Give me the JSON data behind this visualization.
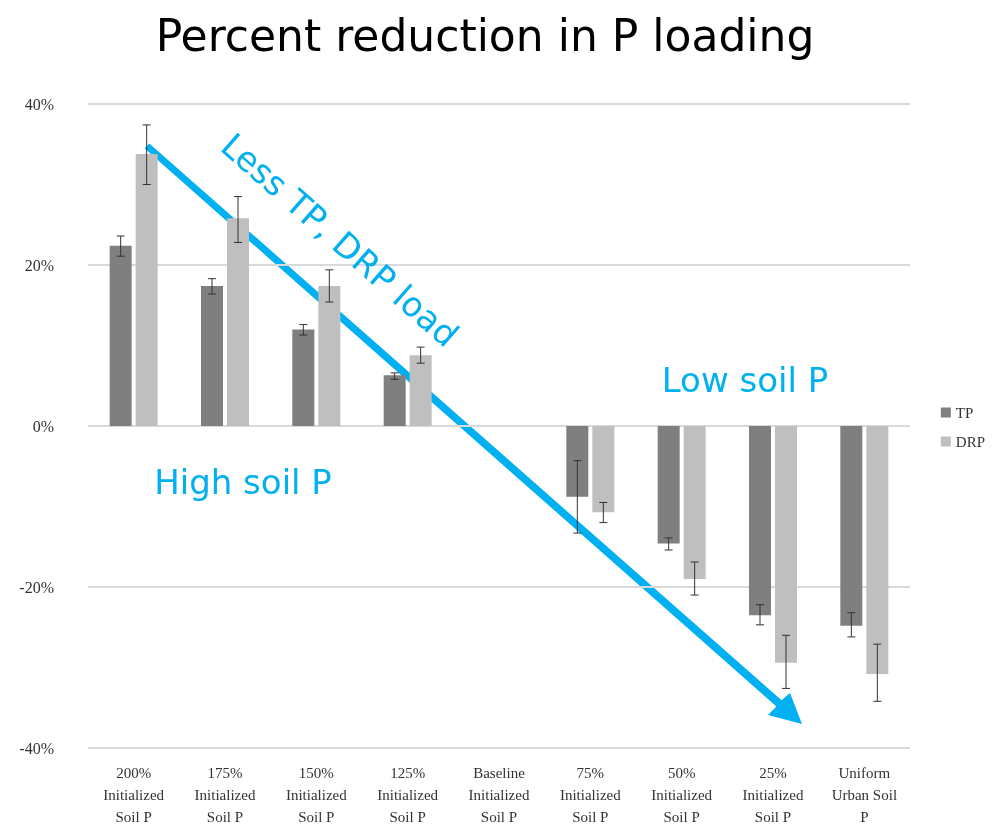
{
  "chart_data": {
    "type": "bar",
    "title": "Percent reduction in P loading",
    "categories": [
      "200% Initialized Soil P",
      "175% Initialized Soil P",
      "150% Initialized Soil P",
      "125% Initialized Soil P",
      "Baseline Initialized Soil P",
      "75% Initialized Soil P",
      "50% Initialized Soil P",
      "25% Initialized Soil P",
      "Uniform Urban Soil P"
    ],
    "series": [
      {
        "name": "TP",
        "color": "#7f7f7f",
        "values": [
          22.4,
          17.4,
          12.0,
          6.3,
          0,
          -8.8,
          -14.6,
          -23.5,
          -24.8
        ],
        "errors": [
          [
            21.1,
            23.6
          ],
          [
            16.4,
            18.3
          ],
          [
            11.3,
            12.6
          ],
          [
            5.8,
            6.6
          ],
          null,
          [
            -13.3,
            -4.3
          ],
          [
            -15.4,
            -13.9
          ],
          [
            -24.7,
            -22.2
          ],
          [
            -26.2,
            -23.2
          ]
        ]
      },
      {
        "name": "DRP",
        "color": "#bfbfbf",
        "values": [
          33.8,
          25.8,
          17.4,
          8.8,
          0,
          -10.7,
          -19.0,
          -29.4,
          -30.8
        ],
        "errors": [
          [
            30.0,
            37.4
          ],
          [
            22.8,
            28.5
          ],
          [
            15.4,
            19.4
          ],
          [
            7.8,
            9.8
          ],
          null,
          [
            -12.0,
            -9.5
          ],
          [
            -21.0,
            -16.9
          ],
          [
            -32.6,
            -26.0
          ],
          [
            -34.2,
            -27.1
          ]
        ]
      }
    ],
    "ylim": [
      -40,
      40
    ],
    "yticks": [
      {
        "value": -40,
        "label": "-40%"
      },
      {
        "value": -20,
        "label": "-20%"
      },
      {
        "value": 0,
        "label": "0%"
      },
      {
        "value": 20,
        "label": "20%"
      },
      {
        "value": 40,
        "label": "40%"
      }
    ],
    "grid": "y",
    "legend": "right",
    "annotations": [
      "Less TP, DRP load",
      "Low soil P",
      "High soil P"
    ]
  }
}
